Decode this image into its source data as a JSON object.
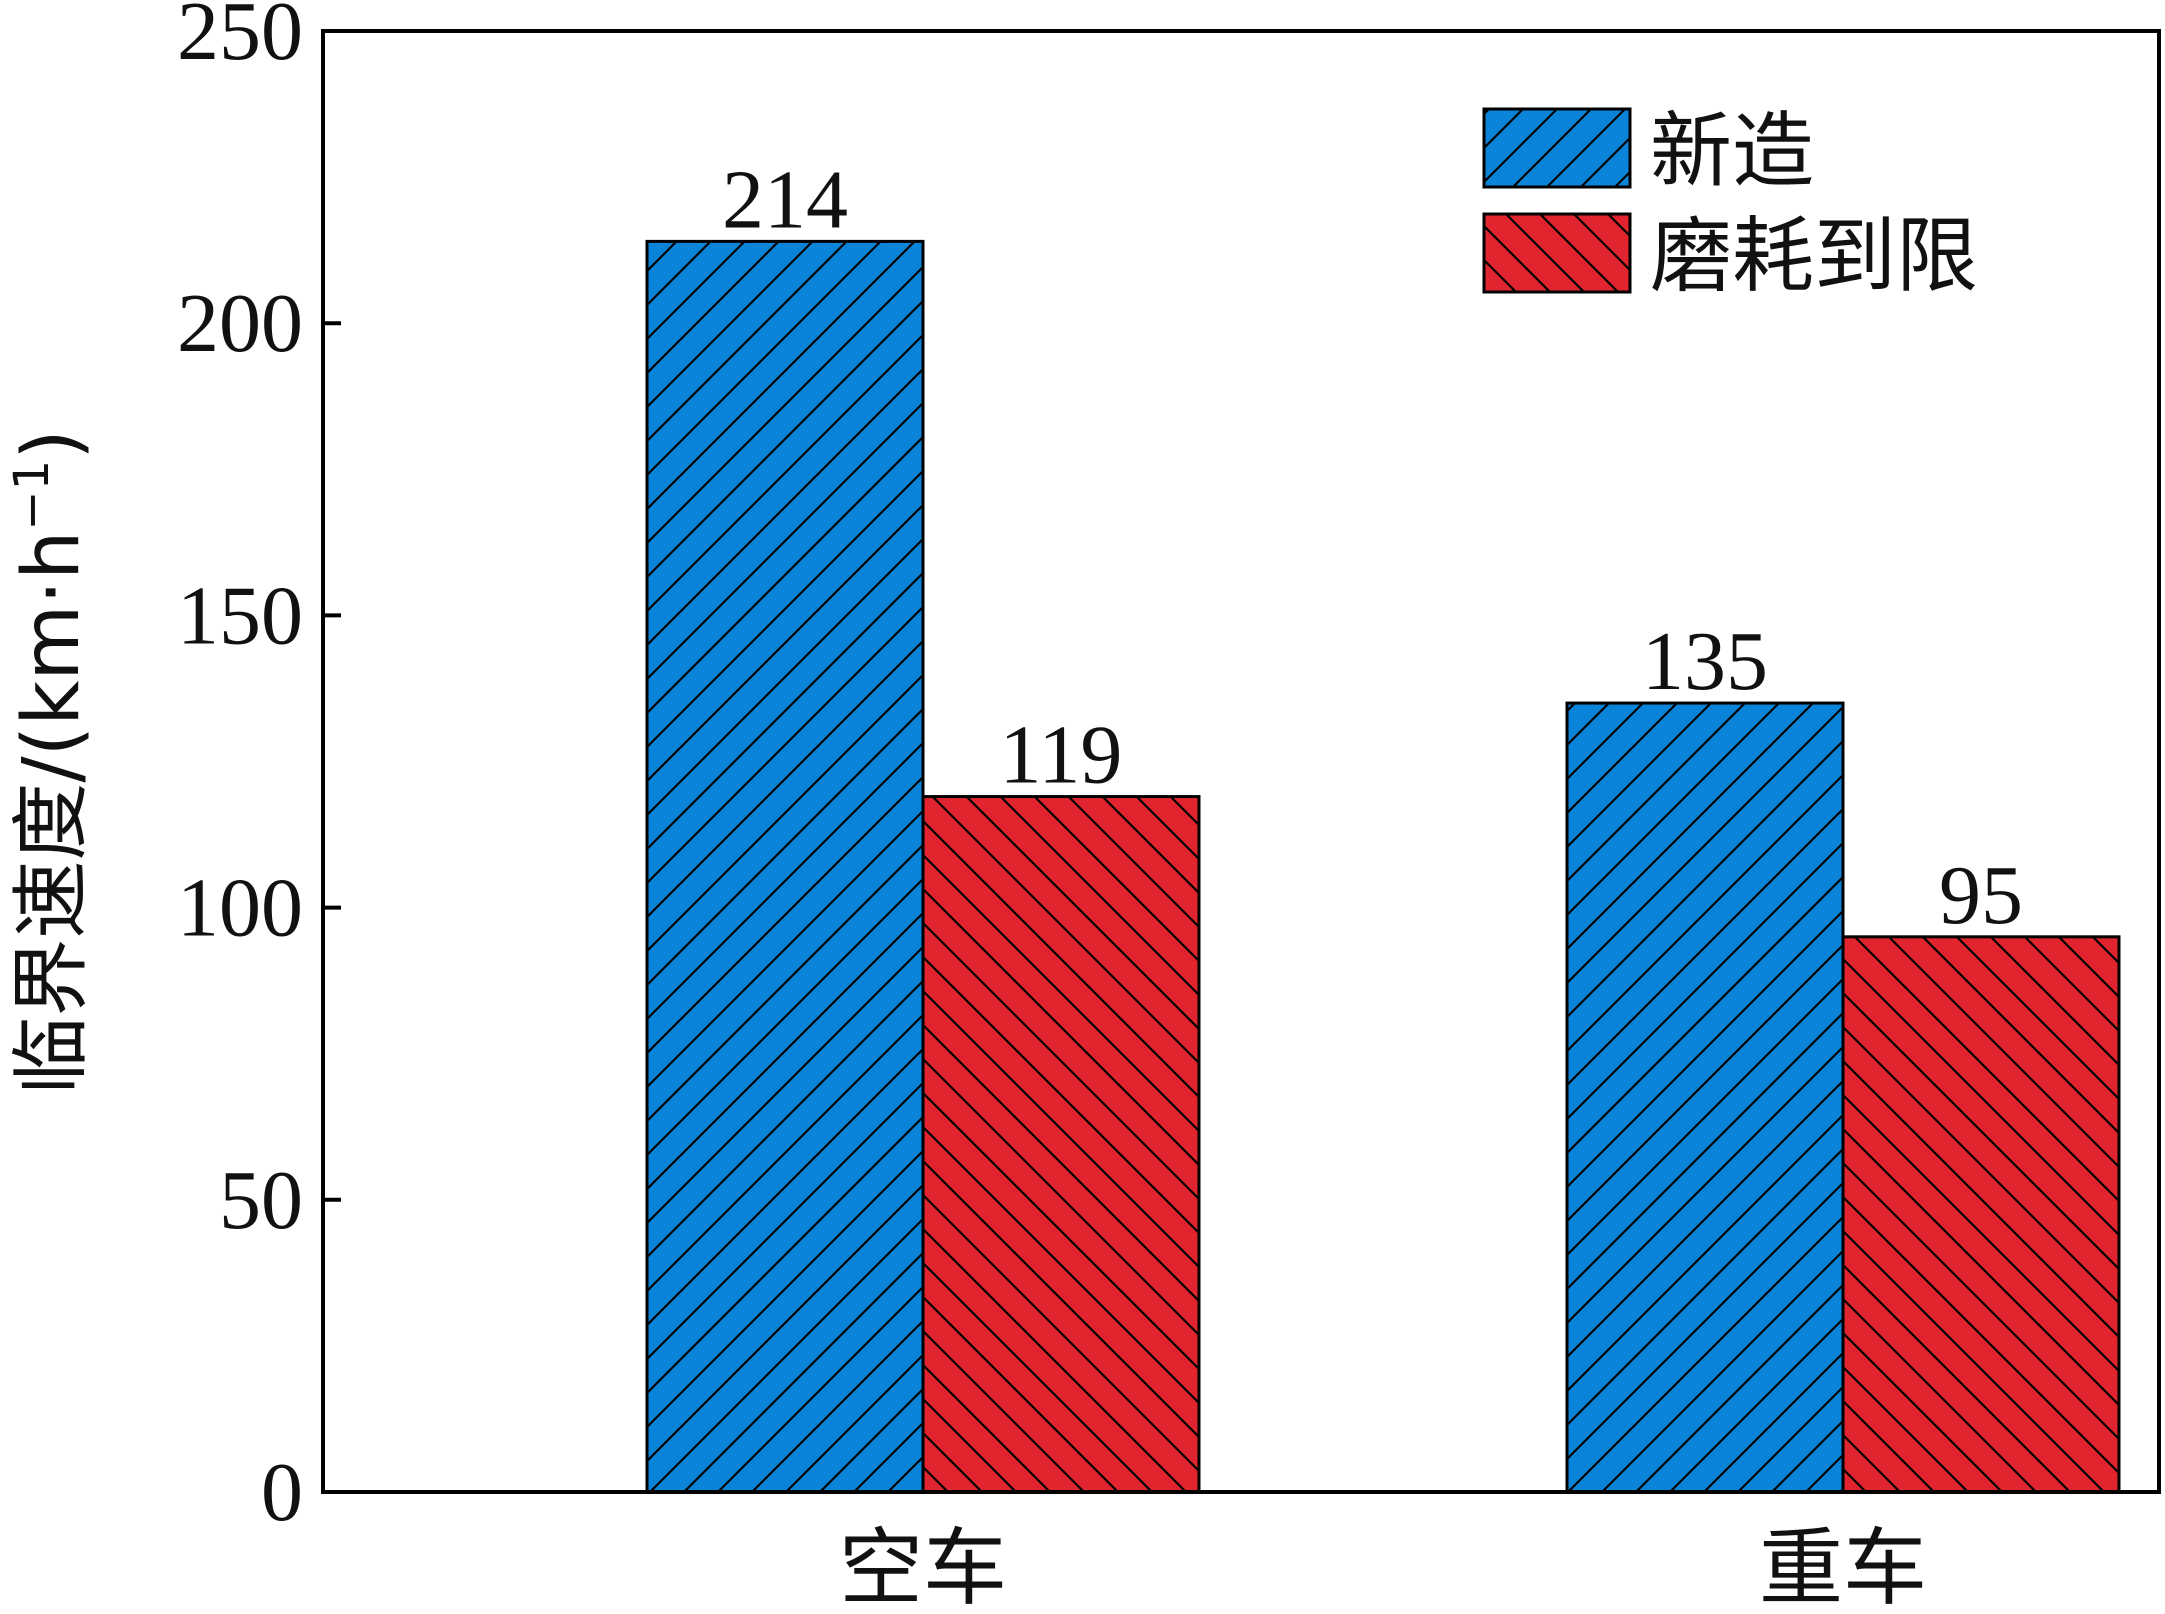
{
  "chart_data": {
    "type": "bar",
    "title": "",
    "xlabel": "",
    "ylabel": "临界速度/(km·h",
    "ylabel_exponent": "−1",
    "ylabel_close": ")",
    "ylim": [
      0,
      250
    ],
    "yticks": [
      0,
      50,
      100,
      150,
      200,
      250
    ],
    "categories": [
      "空车",
      "重车"
    ],
    "series": [
      {
        "name": "新造",
        "values": [
          214,
          135
        ],
        "color": "#0a84d8",
        "hatch": "forward-diagonal"
      },
      {
        "name": "磨耗到限",
        "values": [
          119,
          95
        ],
        "color": "#e0252f",
        "hatch": "back-diagonal"
      }
    ],
    "data_labels": true,
    "grid": false,
    "legend_position": "top-right"
  }
}
